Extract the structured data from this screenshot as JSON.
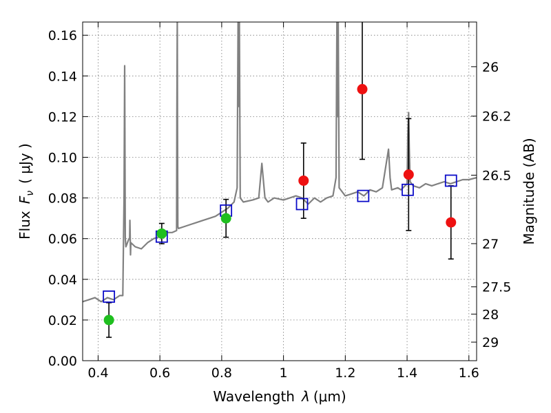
{
  "chart_data": {
    "type": "scatter",
    "xlabel": "Wavelength",
    "xlabel_symbol": "λ",
    "xlabel_unit": "(μm)",
    "ylabel_prefix": "Flux",
    "ylabel_symbol": "F",
    "ylabel_subscript": "ν",
    "ylabel_unit": "( μJy )",
    "y2label": "Magnitude (AB)",
    "xlim": [
      0.35,
      1.625
    ],
    "ylim": [
      0.0,
      0.1665
    ],
    "grid": true,
    "x_ticks": [
      {
        "value": 0.4,
        "label": "0.4"
      },
      {
        "value": 0.6,
        "label": "0.6"
      },
      {
        "value": 0.8,
        "label": "0.8"
      },
      {
        "value": 1.0,
        "label": "1"
      },
      {
        "value": 1.2,
        "label": "1.2"
      },
      {
        "value": 1.4,
        "label": "1.4"
      },
      {
        "value": 1.6,
        "label": "1.6"
      }
    ],
    "y_ticks": [
      {
        "value": 0.0,
        "label": "0.00"
      },
      {
        "value": 0.02,
        "label": "0.02"
      },
      {
        "value": 0.04,
        "label": "0.04"
      },
      {
        "value": 0.06,
        "label": "0.06"
      },
      {
        "value": 0.08,
        "label": "0.08"
      },
      {
        "value": 0.1,
        "label": "0.10"
      },
      {
        "value": 0.12,
        "label": "0.12"
      },
      {
        "value": 0.14,
        "label": "0.14"
      },
      {
        "value": 0.16,
        "label": "0.16"
      }
    ],
    "y2_ticks": [
      {
        "mag": 26,
        "label": "26"
      },
      {
        "mag": 26.2,
        "label": "26.2"
      },
      {
        "mag": 26.5,
        "label": "26.5"
      },
      {
        "mag": 27,
        "label": "27"
      },
      {
        "mag": 27.5,
        "label": "27.5"
      },
      {
        "mag": 28,
        "label": "28"
      },
      {
        "mag": 29,
        "label": "29"
      }
    ],
    "colors": {
      "spectrum": "#808080",
      "green_points": "#1fbf1f",
      "red_points": "#ee1111",
      "model_squares": "#0b0bc8",
      "error_bars": "#000000",
      "grid": "#777777"
    },
    "spectrum": {
      "name": "",
      "x": [
        0.35,
        0.37,
        0.39,
        0.41,
        0.43,
        0.45,
        0.47,
        0.48,
        0.484,
        0.486,
        0.488,
        0.49,
        0.5,
        0.502,
        0.503,
        0.504,
        0.505,
        0.506,
        0.52,
        0.54,
        0.56,
        0.58,
        0.6,
        0.62,
        0.64,
        0.654,
        0.655,
        0.6563,
        0.657,
        0.658,
        0.66,
        0.68,
        0.7,
        0.72,
        0.74,
        0.76,
        0.78,
        0.8,
        0.82,
        0.84,
        0.85,
        0.853,
        0.855,
        0.857,
        0.86,
        0.87,
        0.9,
        0.92,
        0.93,
        0.94,
        0.95,
        0.97,
        1.0,
        1.02,
        1.04,
        1.06,
        1.08,
        1.1,
        1.12,
        1.14,
        1.16,
        1.17,
        1.173,
        1.175,
        1.177,
        1.18,
        1.2,
        1.22,
        1.24,
        1.26,
        1.28,
        1.3,
        1.32,
        1.34,
        1.345,
        1.35,
        1.37,
        1.38,
        1.4,
        1.402,
        1.405,
        1.407,
        1.41,
        1.42,
        1.44,
        1.46,
        1.48,
        1.5,
        1.52,
        1.54,
        1.56,
        1.58,
        1.6,
        1.625
      ],
      "y": [
        0.029,
        0.03,
        0.031,
        0.029,
        0.031,
        0.03,
        0.032,
        0.032,
        0.08,
        0.145,
        0.06,
        0.056,
        0.06,
        0.06,
        0.069,
        0.06,
        0.052,
        0.058,
        0.056,
        0.055,
        0.058,
        0.06,
        0.061,
        0.063,
        0.063,
        0.064,
        0.12,
        0.17,
        0.12,
        0.066,
        0.065,
        0.066,
        0.067,
        0.068,
        0.069,
        0.07,
        0.071,
        0.073,
        0.075,
        0.078,
        0.085,
        0.17,
        0.125,
        0.17,
        0.08,
        0.078,
        0.079,
        0.08,
        0.097,
        0.08,
        0.078,
        0.08,
        0.079,
        0.08,
        0.081,
        0.08,
        0.077,
        0.08,
        0.078,
        0.08,
        0.081,
        0.09,
        0.17,
        0.12,
        0.17,
        0.085,
        0.081,
        0.082,
        0.083,
        0.081,
        0.084,
        0.083,
        0.085,
        0.104,
        0.09,
        0.084,
        0.085,
        0.084,
        0.087,
        0.11,
        0.122,
        0.105,
        0.088,
        0.086,
        0.085,
        0.087,
        0.086,
        0.087,
        0.088,
        0.087,
        0.088,
        0.089,
        0.089,
        0.09
      ]
    },
    "observed_points": [
      {
        "x": 0.435,
        "y": 0.02,
        "err": 0.0085,
        "color": "green"
      },
      {
        "x": 0.606,
        "y": 0.0625,
        "err": 0.005,
        "color": "green"
      },
      {
        "x": 0.814,
        "y": 0.07,
        "err": 0.0093,
        "color": "green"
      },
      {
        "x": 1.065,
        "y": 0.0885,
        "err": 0.0185,
        "color": "red"
      },
      {
        "x": 1.255,
        "y": 0.1335,
        "err": 0.0345,
        "color": "red"
      },
      {
        "x": 1.405,
        "y": 0.0915,
        "err": 0.0275,
        "color": "red"
      },
      {
        "x": 1.542,
        "y": 0.068,
        "err": 0.018,
        "color": "red"
      }
    ],
    "model_points": {
      "name": "",
      "x": [
        0.435,
        0.606,
        0.814,
        1.06,
        1.258,
        1.402,
        1.542
      ],
      "y": [
        0.0315,
        0.061,
        0.0738,
        0.077,
        0.081,
        0.084,
        0.0885
      ]
    }
  }
}
